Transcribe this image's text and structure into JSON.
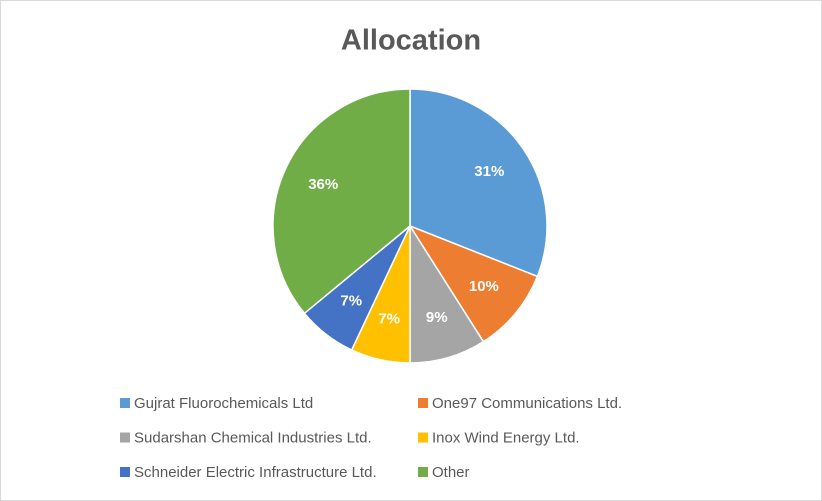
{
  "chart_data": {
    "type": "pie",
    "title": "Allocation",
    "categories": [
      "Gujrat Fluorochemicals Ltd",
      "One97 Communications Ltd.",
      "Sudarshan Chemical Industries Ltd.",
      "Inox Wind Energy Ltd.",
      "Schneider Electric Infrastructure Ltd.",
      "Other"
    ],
    "values": [
      31,
      10,
      9,
      7,
      7,
      36
    ],
    "value_labels": [
      "31%",
      "10%",
      "9%",
      "7%",
      "7%",
      "36%"
    ],
    "colors": [
      "#5b9bd5",
      "#ed7d31",
      "#a5a5a5",
      "#ffc000",
      "#4472c4",
      "#70ad47"
    ]
  }
}
